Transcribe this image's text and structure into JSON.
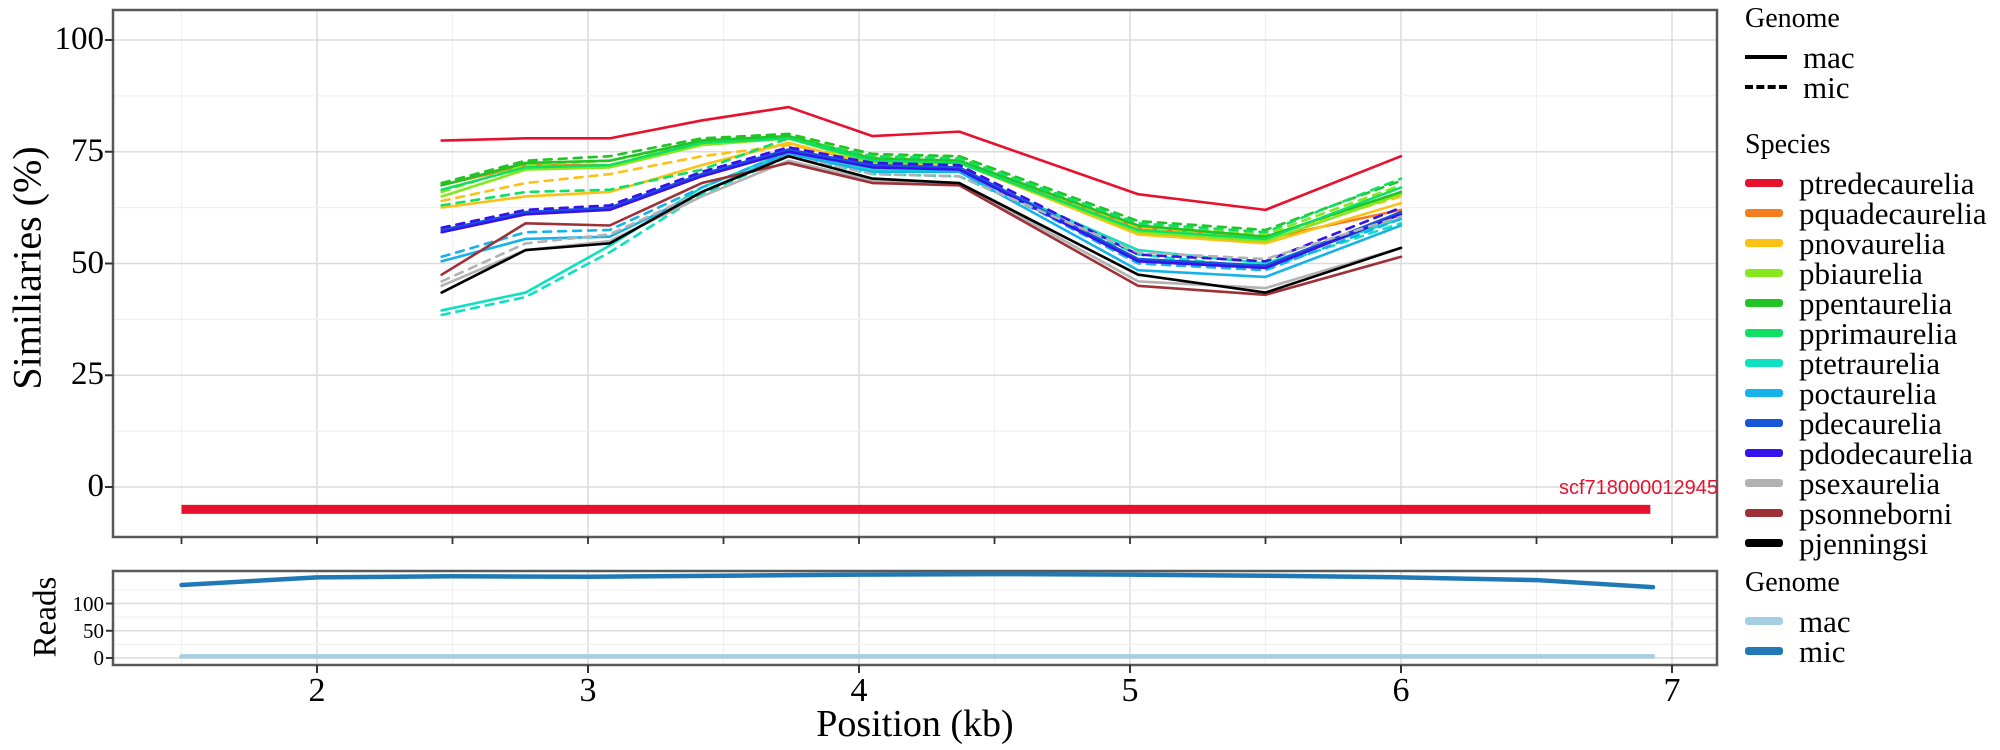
{
  "figure": {
    "annotation_label": "scf718000012945",
    "annotation_color": "#e8112d"
  },
  "chart_data": [
    {
      "type": "line",
      "panel": "similarity",
      "title": "",
      "xlabel": "Position (kb)",
      "ylabel": "Similiaries (%)",
      "xlim": [
        1.25,
        7.17
      ],
      "ylim": [
        -8,
        104
      ],
      "xticks": [
        2,
        3,
        4,
        5,
        6,
        7
      ],
      "xticks_minor": [
        1.5,
        2.5,
        3.5,
        4.5,
        5.5,
        6.5
      ],
      "yticks": [
        0,
        25,
        50,
        75,
        100
      ],
      "yticks_minor": [
        12.5,
        37.5,
        62.5,
        87.5
      ],
      "grid": true,
      "legend_position": "right",
      "x": [
        2.46,
        2.77,
        3.08,
        3.42,
        3.74,
        4.05,
        4.37,
        5.03,
        5.5,
        6.0
      ],
      "series": [
        {
          "species": "ptredecaurelia",
          "genome": "mac",
          "color": "#e8112d",
          "dashed": false,
          "values": [
            77.5,
            78,
            78,
            82,
            85,
            78.5,
            79.5,
            65.5,
            62,
            74
          ]
        },
        {
          "species": "pquadecaurelia",
          "genome": "mac",
          "color": "#f47d20",
          "dashed": false,
          "values": [
            67.5,
            72,
            72,
            77,
            78,
            73.5,
            73,
            58,
            55.5,
            62
          ]
        },
        {
          "species": "pnovaurelia",
          "genome": "mac",
          "color": "#fdc116",
          "dashed": false,
          "values": [
            62.5,
            65,
            66,
            72,
            77,
            72,
            72.5,
            56.5,
            54.5,
            63.5
          ]
        },
        {
          "species": "pnovaurelia",
          "genome": "mic",
          "color": "#fdc116",
          "dashed": true,
          "values": [
            64,
            68,
            70,
            74,
            76.5,
            73,
            73,
            58,
            56,
            65
          ]
        },
        {
          "species": "pbiaurelia",
          "genome": "mac",
          "color": "#86e81c",
          "dashed": false,
          "values": [
            65,
            71,
            71.5,
            76.5,
            78,
            72.5,
            72.5,
            57,
            55,
            65.5
          ]
        },
        {
          "species": "pbiaurelia",
          "genome": "mic",
          "color": "#86e81c",
          "dashed": true,
          "values": [
            66,
            72,
            73,
            77,
            78.5,
            74,
            74,
            58.5,
            56.5,
            67.5
          ]
        },
        {
          "species": "ppentaurelia",
          "genome": "mac",
          "color": "#21c424",
          "dashed": false,
          "values": [
            67.5,
            72.5,
            73,
            77.5,
            78.5,
            73.5,
            73,
            58.5,
            56,
            66
          ]
        },
        {
          "species": "ppentaurelia",
          "genome": "mic",
          "color": "#21c424",
          "dashed": true,
          "values": [
            68,
            73,
            74,
            78,
            79,
            74.5,
            74,
            59.5,
            57.5,
            68.5
          ]
        },
        {
          "species": "pprimaurelia",
          "genome": "mac",
          "color": "#0fe065",
          "dashed": false,
          "values": [
            66.5,
            71.5,
            72,
            77,
            78,
            73,
            72.5,
            57.5,
            55.5,
            67
          ]
        },
        {
          "species": "pprimaurelia",
          "genome": "mic",
          "color": "#0fe065",
          "dashed": true,
          "values": [
            63,
            66,
            66.5,
            71,
            78,
            74,
            73.5,
            59,
            57,
            69
          ]
        },
        {
          "species": "ptetraurelia",
          "genome": "mac",
          "color": "#0ee0c0",
          "dashed": false,
          "values": [
            39.5,
            43.5,
            54,
            67,
            75,
            71,
            70.5,
            53,
            50,
            60
          ]
        },
        {
          "species": "ptetraurelia",
          "genome": "mic",
          "color": "#0ee0c0",
          "dashed": true,
          "values": [
            38.5,
            42.5,
            52.5,
            65.5,
            74,
            70,
            69.5,
            52,
            49,
            59
          ]
        },
        {
          "species": "poctaurelia",
          "genome": "mac",
          "color": "#17b2ea",
          "dashed": false,
          "values": [
            50.5,
            55.5,
            56,
            66,
            74.5,
            70.5,
            70.5,
            48.5,
            47,
            58.5
          ]
        },
        {
          "species": "poctaurelia",
          "genome": "mic",
          "color": "#17b2ea",
          "dashed": true,
          "values": [
            51.5,
            57,
            57.5,
            67,
            75,
            71.5,
            71,
            50,
            48.5,
            60
          ]
        },
        {
          "species": "pdecaurelia",
          "genome": "mac",
          "color": "#1656d8",
          "dashed": false,
          "values": [
            57.5,
            61.5,
            62.5,
            70,
            75.5,
            72,
            71.5,
            51,
            49.5,
            61.5
          ]
        },
        {
          "species": "pdodecaurelia",
          "genome": "mac",
          "color": "#3812ec",
          "dashed": false,
          "values": [
            57,
            61,
            62,
            69.5,
            75,
            71.5,
            71,
            50.5,
            49,
            61
          ]
        },
        {
          "species": "pdodecaurelia",
          "genome": "mic",
          "color": "#3812ec",
          "dashed": true,
          "values": [
            58,
            62,
            63,
            70.5,
            76,
            72.5,
            72,
            52,
            50.5,
            62.5
          ]
        },
        {
          "species": "psexaurelia",
          "genome": "mac",
          "color": "#b2b2b2",
          "dashed": false,
          "values": [
            45,
            53,
            55,
            65,
            73,
            68.5,
            68,
            46,
            44.5,
            53.5
          ]
        },
        {
          "species": "psexaurelia",
          "genome": "mic",
          "color": "#b2b2b2",
          "dashed": true,
          "values": [
            46,
            54.5,
            56.5,
            66,
            74,
            70,
            69.5,
            52.5,
            51,
            60.5
          ]
        },
        {
          "species": "psonneborni",
          "genome": "mac",
          "color": "#9e3038",
          "dashed": false,
          "values": [
            47.5,
            59,
            58.5,
            68,
            72.5,
            68,
            67.5,
            45,
            43,
            51.5
          ]
        },
        {
          "species": "pjenningsi",
          "genome": "mac",
          "color": "#000000",
          "dashed": false,
          "values": [
            43.5,
            53,
            54.5,
            66,
            74,
            69,
            68,
            47.5,
            43.5,
            53.5
          ]
        }
      ],
      "scaffold_bar": {
        "label": "scf718000012945",
        "start_kb": 1.5,
        "end_kb": 6.92,
        "value": -5,
        "color": "#e8112d"
      }
    },
    {
      "type": "line",
      "panel": "reads",
      "ylabel": "Reads",
      "ylim": [
        -3,
        160
      ],
      "yticks": [
        0,
        50,
        100
      ],
      "yticks_minor": [
        25,
        75,
        125
      ],
      "grid": true,
      "x": [
        1.5,
        2.0,
        2.5,
        3.0,
        3.5,
        4.0,
        4.5,
        5.0,
        5.5,
        6.0,
        6.5,
        6.93
      ],
      "series": [
        {
          "genome": "mac",
          "color": "#a6cee3",
          "dashed": false,
          "values": [
            3,
            3,
            3,
            3,
            3,
            3,
            3,
            3,
            3,
            3,
            3,
            3
          ]
        },
        {
          "genome": "mic",
          "color": "#2079b4",
          "dashed": false,
          "values": [
            134,
            148,
            150,
            149,
            151,
            153,
            154,
            153,
            151,
            148,
            143,
            130
          ]
        }
      ]
    }
  ],
  "legends": {
    "genome_top": {
      "title": "Genome",
      "color": "#000000",
      "items": [
        {
          "label": "mac",
          "style": "solid"
        },
        {
          "label": "mic",
          "style": "dashed"
        }
      ]
    },
    "species": {
      "title": "Species",
      "items": [
        {
          "label": "ptredecaurelia",
          "color": "#e8112d"
        },
        {
          "label": "pquadecaurelia",
          "color": "#f47d20"
        },
        {
          "label": "pnovaurelia",
          "color": "#fdc116"
        },
        {
          "label": "pbiaurelia",
          "color": "#86e81c"
        },
        {
          "label": "ppentaurelia",
          "color": "#21c424"
        },
        {
          "label": "pprimaurelia",
          "color": "#0fe065"
        },
        {
          "label": "ptetraurelia",
          "color": "#0ee0c0"
        },
        {
          "label": "poctaurelia",
          "color": "#17b2ea"
        },
        {
          "label": "pdecaurelia",
          "color": "#1656d8"
        },
        {
          "label": "pdodecaurelia",
          "color": "#3812ec"
        },
        {
          "label": "psexaurelia",
          "color": "#b2b2b2"
        },
        {
          "label": "psonneborni",
          "color": "#9e3038"
        },
        {
          "label": "pjenningsi",
          "color": "#000000"
        }
      ]
    },
    "genome_bottom": {
      "title": "Genome",
      "items": [
        {
          "label": "mac",
          "color": "#a6cee3"
        },
        {
          "label": "mic",
          "color": "#2079b4"
        }
      ]
    }
  }
}
